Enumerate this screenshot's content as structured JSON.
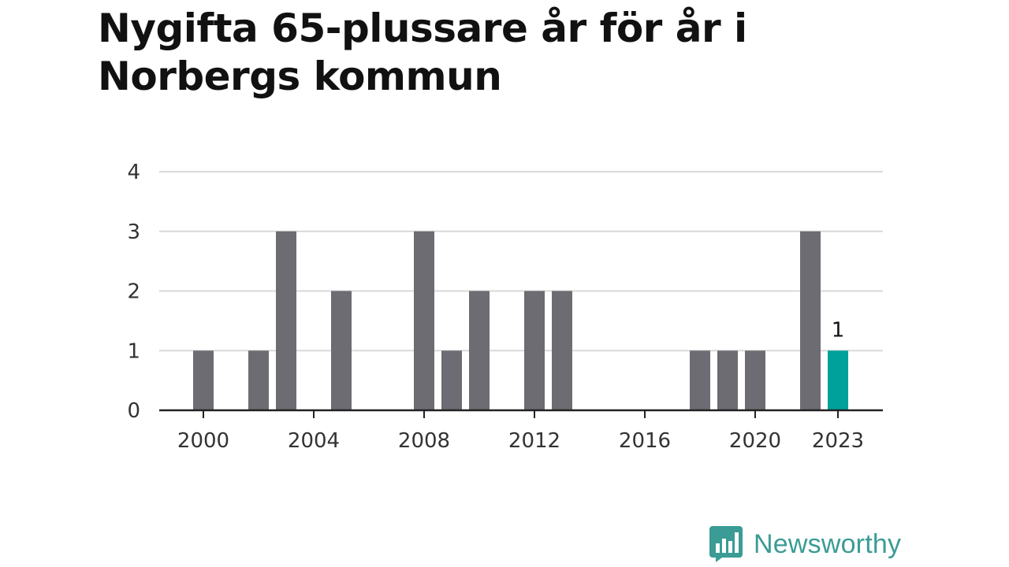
{
  "title": "Nygifta 65-plussare år för år i Norbergs kommun",
  "brand": {
    "name": "Newsworthy",
    "logo_icon": "bar-chart-speech-bubble-icon"
  },
  "colors": {
    "bar": "#6d6c72",
    "highlight": "#00a19a",
    "grid": "#d9d9d9",
    "axis": "#222222",
    "brand": "#3a9c95"
  },
  "chart_data": {
    "type": "bar",
    "title": "Nygifta 65-plussare år för år i Norbergs kommun",
    "categories": [
      2000,
      2001,
      2002,
      2003,
      2004,
      2005,
      2006,
      2007,
      2008,
      2009,
      2010,
      2011,
      2012,
      2013,
      2014,
      2015,
      2016,
      2017,
      2018,
      2019,
      2020,
      2021,
      2022,
      2023
    ],
    "values": [
      1,
      0,
      1,
      3,
      0,
      2,
      0,
      0,
      3,
      1,
      2,
      0,
      2,
      2,
      0,
      0,
      0,
      0,
      1,
      1,
      1,
      0,
      3,
      1
    ],
    "highlight": {
      "category": 2023,
      "label": "1"
    },
    "x_tick_labels": [
      "2000",
      "2004",
      "2008",
      "2012",
      "2016",
      "2020",
      "2023"
    ],
    "y_ticks": [
      0,
      1,
      2,
      3,
      4
    ],
    "ylim": [
      0,
      4
    ],
    "xlabel": "",
    "ylabel": "",
    "grid": true
  }
}
